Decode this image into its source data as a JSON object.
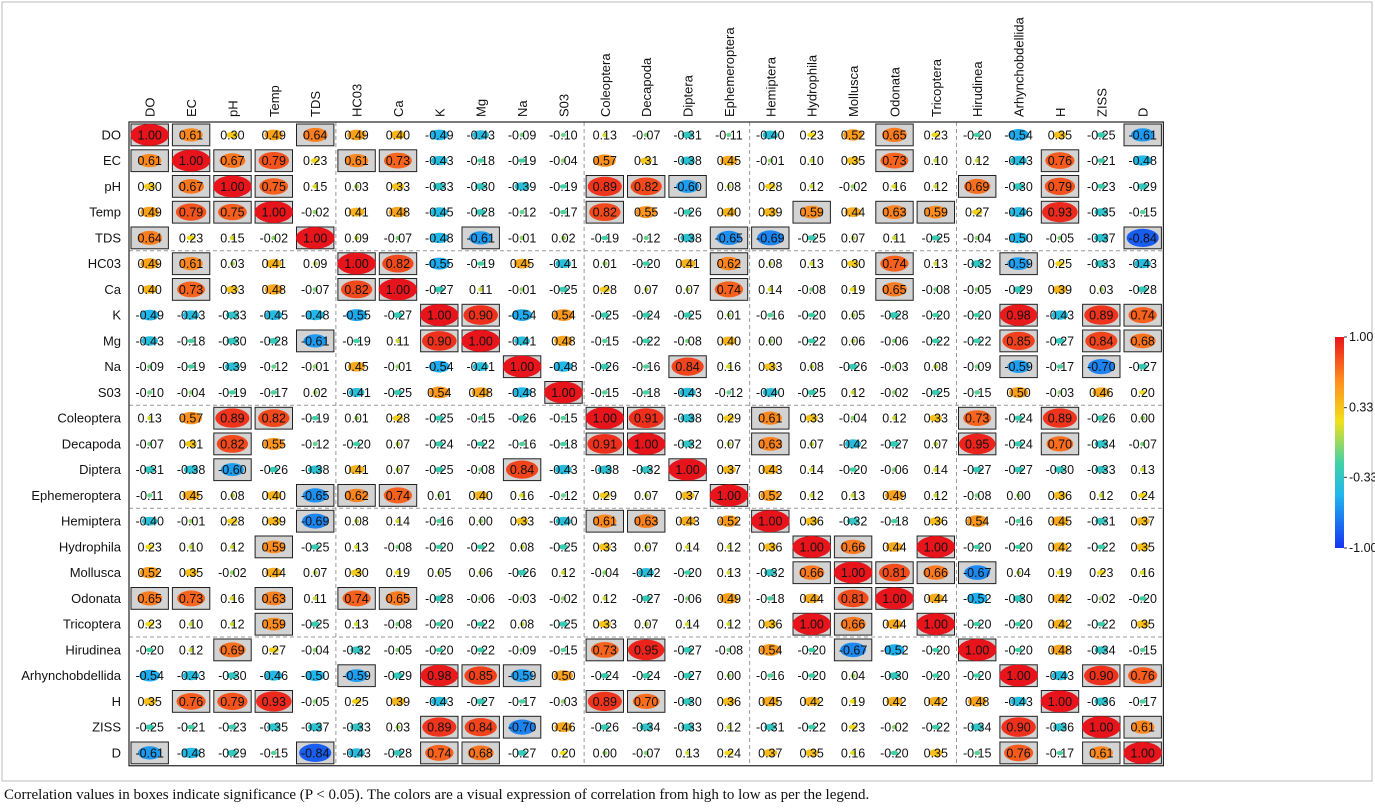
{
  "chart_data": {
    "type": "heatmap",
    "title": "",
    "xlabel": "",
    "ylabel": "",
    "variables": [
      "DO",
      "EC",
      "pH",
      "Temp",
      "TDS",
      "HC03",
      "Ca",
      "K",
      "Mg",
      "Na",
      "S03",
      "Coleoptera",
      "Decapoda",
      "Diptera",
      "Ephemeroptera",
      "Hemiptera",
      "Hydrophila",
      "Mollusca",
      "Odonata",
      "Tricoptera",
      "Hirudinea",
      "Arhynchobdellida",
      "H",
      "ZISS",
      "D"
    ],
    "matrix": [
      [
        "1.00",
        "0.61",
        "0.30",
        "0.49",
        "0.64",
        "0.49",
        "0.40",
        "-0.49",
        "-0.43",
        "-0.09",
        "-0.10",
        "0.13",
        "-0.07",
        "-0.31",
        "-0.11",
        "-0.40",
        "0.23",
        "0.52",
        "0.65",
        "0.23",
        "-0.20",
        "-0.54",
        "0.35",
        "-0.25",
        "-0.61"
      ],
      [
        "0.61",
        "1.00",
        "0.67",
        "0.79",
        "0.23",
        "0.61",
        "0.73",
        "-0.43",
        "-0.18",
        "-0.19",
        "-0.04",
        "0.57",
        "0.31",
        "-0.38",
        "0.45",
        "-0.01",
        "0.10",
        "0.35",
        "0.73",
        "0.10",
        "0.12",
        "-0.43",
        "0.76",
        "-0.21",
        "-0.48"
      ],
      [
        "0.30",
        "0.67",
        "1.00",
        "0.75",
        "0.15",
        "0.03",
        "0.33",
        "-0.33",
        "-0.30",
        "-0.39",
        "-0.19",
        "0.89",
        "0.82",
        "-0.60",
        "0.08",
        "0.28",
        "0.12",
        "-0.02",
        "0.16",
        "0.12",
        "0.69",
        "-0.30",
        "0.79",
        "-0.23",
        "-0.29"
      ],
      [
        "0.49",
        "0.79",
        "0.75",
        "1.00",
        "-0.02",
        "0.41",
        "0.48",
        "-0.45",
        "-0.28",
        "-0.12",
        "-0.17",
        "0.82",
        "0.55",
        "-0.26",
        "0.40",
        "0.39",
        "0.59",
        "0.44",
        "0.63",
        "0.59",
        "0.27",
        "-0.46",
        "0.93",
        "-0.35",
        "-0.15"
      ],
      [
        "0.64",
        "0.23",
        "0.15",
        "-0.02",
        "1.00",
        "0.09",
        "-0.07",
        "-0.48",
        "-0.61",
        "-0.01",
        "0.02",
        "-0.19",
        "-0.12",
        "-0.38",
        "-0.65",
        "-0.69",
        "-0.25",
        "0.07",
        "0.11",
        "-0.25",
        "-0.04",
        "-0.50",
        "-0.05",
        "-0.37",
        "-0.84"
      ],
      [
        "0.49",
        "0.61",
        "0.03",
        "0.41",
        "0.09",
        "1.00",
        "0.82",
        "-0.55",
        "-0.19",
        "0.45",
        "-0.41",
        "0.01",
        "-0.20",
        "0.41",
        "0.62",
        "0.08",
        "0.13",
        "0.30",
        "0.74",
        "0.13",
        "-0.32",
        "-0.59",
        "0.25",
        "-0.33",
        "-0.43"
      ],
      [
        "0.40",
        "0.73",
        "0.33",
        "0.48",
        "-0.07",
        "0.82",
        "1.00",
        "-0.27",
        "0.11",
        "-0.01",
        "-0.25",
        "0.28",
        "0.07",
        "0.07",
        "0.74",
        "0.14",
        "-0.08",
        "0.19",
        "0.65",
        "-0.08",
        "-0.05",
        "-0.29",
        "0.39",
        "0.03",
        "-0.28"
      ],
      [
        "-0.49",
        "-0.43",
        "-0.33",
        "-0.45",
        "-0.48",
        "-0.55",
        "-0.27",
        "1.00",
        "0.90",
        "-0.54",
        "0.54",
        "-0.25",
        "-0.24",
        "-0.25",
        "0.01",
        "-0.16",
        "-0.20",
        "0.05",
        "-0.28",
        "-0.20",
        "-0.20",
        "0.98",
        "-0.43",
        "0.89",
        "0.74"
      ],
      [
        "-0.43",
        "-0.18",
        "-0.30",
        "-0.28",
        "-0.61",
        "-0.19",
        "0.11",
        "0.90",
        "1.00",
        "-0.41",
        "0.48",
        "-0.15",
        "-0.22",
        "-0.08",
        "0.40",
        "0.00",
        "-0.22",
        "0.06",
        "-0.06",
        "-0.22",
        "-0.22",
        "0.85",
        "-0.27",
        "0.84",
        "0.68"
      ],
      [
        "-0.09",
        "-0.19",
        "-0.39",
        "-0.12",
        "-0.01",
        "0.45",
        "-0.01",
        "-0.54",
        "-0.41",
        "1.00",
        "-0.48",
        "-0.26",
        "-0.16",
        "0.84",
        "0.16",
        "0.33",
        "0.08",
        "-0.26",
        "-0.03",
        "0.08",
        "-0.09",
        "-0.59",
        "-0.17",
        "-0.70",
        "-0.27"
      ],
      [
        "-0.10",
        "-0.04",
        "-0.19",
        "-0.17",
        "0.02",
        "-0.41",
        "-0.25",
        "0.54",
        "0.48",
        "-0.48",
        "1.00",
        "-0.15",
        "-0.18",
        "-0.43",
        "-0.12",
        "-0.40",
        "-0.25",
        "0.12",
        "-0.02",
        "-0.25",
        "-0.15",
        "0.50",
        "-0.03",
        "0.46",
        "0.20"
      ],
      [
        "0.13",
        "0.57",
        "0.89",
        "0.82",
        "-0.19",
        "0.01",
        "0.28",
        "-0.25",
        "-0.15",
        "-0.26",
        "-0.15",
        "1.00",
        "0.91",
        "-0.38",
        "0.29",
        "0.61",
        "0.33",
        "-0.04",
        "0.12",
        "0.33",
        "0.73",
        "-0.24",
        "0.89",
        "-0.26",
        "0.00"
      ],
      [
        "-0.07",
        "0.31",
        "0.82",
        "0.55",
        "-0.12",
        "-0.20",
        "0.07",
        "-0.24",
        "-0.22",
        "-0.16",
        "-0.18",
        "0.91",
        "1.00",
        "-0.32",
        "0.07",
        "0.63",
        "0.07",
        "-0.42",
        "-0.27",
        "0.07",
        "0.95",
        "-0.24",
        "0.70",
        "-0.34",
        "-0.07"
      ],
      [
        "-0.31",
        "-0.38",
        "-0.60",
        "-0.26",
        "-0.38",
        "0.41",
        "0.07",
        "-0.25",
        "-0.08",
        "0.84",
        "-0.43",
        "-0.38",
        "-0.32",
        "1.00",
        "0.37",
        "0.43",
        "0.14",
        "-0.20",
        "-0.06",
        "0.14",
        "-0.27",
        "-0.27",
        "-0.30",
        "-0.33",
        "0.13"
      ],
      [
        "-0.11",
        "0.45",
        "0.08",
        "0.40",
        "-0.65",
        "0.62",
        "0.74",
        "0.01",
        "0.40",
        "0.16",
        "-0.12",
        "0.29",
        "0.07",
        "0.37",
        "1.00",
        "0.52",
        "0.12",
        "0.13",
        "0.49",
        "0.12",
        "-0.08",
        "0.00",
        "0.36",
        "0.12",
        "0.24"
      ],
      [
        "-0.40",
        "-0.01",
        "0.28",
        "0.39",
        "-0.69",
        "0.08",
        "0.14",
        "-0.16",
        "0.00",
        "0.33",
        "-0.40",
        "0.61",
        "0.63",
        "0.43",
        "0.52",
        "1.00",
        "0.36",
        "-0.32",
        "-0.18",
        "0.36",
        "0.54",
        "-0.16",
        "0.45",
        "-0.31",
        "0.37"
      ],
      [
        "0.23",
        "0.10",
        "0.12",
        "0.59",
        "-0.25",
        "0.13",
        "-0.08",
        "-0.20",
        "-0.22",
        "0.08",
        "-0.25",
        "0.33",
        "0.07",
        "0.14",
        "0.12",
        "0.36",
        "1.00",
        "0.66",
        "0.44",
        "1.00",
        "-0.20",
        "-0.20",
        "0.42",
        "-0.22",
        "0.35"
      ],
      [
        "0.52",
        "0.35",
        "-0.02",
        "0.44",
        "0.07",
        "0.30",
        "0.19",
        "0.05",
        "0.06",
        "-0.26",
        "0.12",
        "-0.04",
        "-0.42",
        "-0.20",
        "0.13",
        "-0.32",
        "0.66",
        "1.00",
        "0.81",
        "0.66",
        "-0.67",
        "0.04",
        "0.19",
        "0.23",
        "0.16"
      ],
      [
        "0.65",
        "0.73",
        "0.16",
        "0.63",
        "0.11",
        "0.74",
        "0.65",
        "-0.28",
        "-0.06",
        "-0.03",
        "-0.02",
        "0.12",
        "-0.27",
        "-0.06",
        "0.49",
        "-0.18",
        "0.44",
        "0.81",
        "1.00",
        "0.44",
        "-0.52",
        "-0.30",
        "0.42",
        "-0.02",
        "-0.20"
      ],
      [
        "0.23",
        "0.10",
        "0.12",
        "0.59",
        "-0.25",
        "0.13",
        "-0.08",
        "-0.20",
        "-0.22",
        "0.08",
        "-0.25",
        "0.33",
        "0.07",
        "0.14",
        "0.12",
        "0.36",
        "1.00",
        "0.66",
        "0.44",
        "1.00",
        "-0.20",
        "-0.20",
        "0.42",
        "-0.22",
        "0.35"
      ],
      [
        "-0.20",
        "0.12",
        "0.69",
        "0.27",
        "-0.04",
        "-0.32",
        "-0.05",
        "-0.20",
        "-0.22",
        "-0.09",
        "-0.15",
        "0.73",
        "0.95",
        "-0.27",
        "-0.08",
        "0.54",
        "-0.20",
        "-0.67",
        "-0.52",
        "-0.20",
        "1.00",
        "-0.20",
        "0.48",
        "-0.34",
        "-0.15"
      ],
      [
        "-0.54",
        "-0.43",
        "-0.30",
        "-0.46",
        "-0.50",
        "-0.59",
        "-0.29",
        "0.98",
        "0.85",
        "-0.59",
        "0.50",
        "-0.24",
        "-0.24",
        "-0.27",
        "0.00",
        "-0.16",
        "-0.20",
        "0.04",
        "-0.30",
        "-0.20",
        "-0.20",
        "1.00",
        "-0.43",
        "0.90",
        "0.76"
      ],
      [
        "0.35",
        "0.76",
        "0.79",
        "0.93",
        "-0.05",
        "0.25",
        "0.39",
        "-0.43",
        "-0.27",
        "-0.17",
        "-0.03",
        "0.89",
        "0.70",
        "-0.30",
        "0.36",
        "0.45",
        "0.42",
        "0.19",
        "0.42",
        "0.42",
        "0.48",
        "-0.43",
        "1.00",
        "-0.36",
        "-0.17"
      ],
      [
        "-0.25",
        "-0.21",
        "-0.23",
        "-0.35",
        "-0.37",
        "-0.33",
        "0.03",
        "0.89",
        "0.84",
        "-0.70",
        "0.46",
        "-0.26",
        "-0.34",
        "-0.33",
        "0.12",
        "-0.31",
        "-0.22",
        "0.23",
        "-0.02",
        "-0.22",
        "-0.34",
        "0.90",
        "-0.36",
        "1.00",
        "0.61"
      ],
      [
        "-0.61",
        "-0.48",
        "-0.29",
        "-0.15",
        "-0.84",
        "-0.43",
        "-0.28",
        "0.74",
        "0.68",
        "-0.27",
        "0.20",
        "0.00",
        "-0.07",
        "0.13",
        "0.24",
        "0.37",
        "0.35",
        "0.16",
        "-0.20",
        "0.35",
        "-0.15",
        "0.76",
        "-0.17",
        "0.61",
        "1.00"
      ]
    ],
    "significant": [
      [
        "DO",
        "DO"
      ],
      [
        "DO",
        "EC"
      ],
      [
        "DO",
        "TDS"
      ],
      [
        "DO",
        "Odonata"
      ],
      [
        "DO",
        "D"
      ],
      [
        "EC",
        "DO"
      ],
      [
        "EC",
        "EC"
      ],
      [
        "EC",
        "pH"
      ],
      [
        "EC",
        "Temp"
      ],
      [
        "EC",
        "HC03"
      ],
      [
        "EC",
        "Ca"
      ],
      [
        "EC",
        "Odonata"
      ],
      [
        "EC",
        "H"
      ],
      [
        "pH",
        "EC"
      ],
      [
        "pH",
        "pH"
      ],
      [
        "pH",
        "Temp"
      ],
      [
        "pH",
        "Coleoptera"
      ],
      [
        "pH",
        "Decapoda"
      ],
      [
        "pH",
        "Diptera"
      ],
      [
        "pH",
        "Hirudinea"
      ],
      [
        "pH",
        "H"
      ],
      [
        "Temp",
        "EC"
      ],
      [
        "Temp",
        "pH"
      ],
      [
        "Temp",
        "Temp"
      ],
      [
        "Temp",
        "Coleoptera"
      ],
      [
        "Temp",
        "Hydrophila"
      ],
      [
        "Temp",
        "Odonata"
      ],
      [
        "Temp",
        "Tricoptera"
      ],
      [
        "Temp",
        "H"
      ],
      [
        "TDS",
        "DO"
      ],
      [
        "TDS",
        "TDS"
      ],
      [
        "TDS",
        "Mg"
      ],
      [
        "TDS",
        "Ephemeroptera"
      ],
      [
        "TDS",
        "Hemiptera"
      ],
      [
        "TDS",
        "D"
      ],
      [
        "HC03",
        "EC"
      ],
      [
        "HC03",
        "HC03"
      ],
      [
        "HC03",
        "Ca"
      ],
      [
        "HC03",
        "Ephemeroptera"
      ],
      [
        "HC03",
        "Odonata"
      ],
      [
        "HC03",
        "Arhynchobdellida"
      ],
      [
        "Ca",
        "EC"
      ],
      [
        "Ca",
        "HC03"
      ],
      [
        "Ca",
        "Ca"
      ],
      [
        "Ca",
        "Ephemeroptera"
      ],
      [
        "Ca",
        "Odonata"
      ],
      [
        "K",
        "K"
      ],
      [
        "K",
        "Mg"
      ],
      [
        "K",
        "Arhynchobdellida"
      ],
      [
        "K",
        "ZISS"
      ],
      [
        "K",
        "D"
      ],
      [
        "Mg",
        "TDS"
      ],
      [
        "Mg",
        "K"
      ],
      [
        "Mg",
        "Mg"
      ],
      [
        "Mg",
        "Arhynchobdellida"
      ],
      [
        "Mg",
        "ZISS"
      ],
      [
        "Mg",
        "D"
      ],
      [
        "Na",
        "Na"
      ],
      [
        "Na",
        "Diptera"
      ],
      [
        "Na",
        "Arhynchobdellida"
      ],
      [
        "Na",
        "ZISS"
      ],
      [
        "S03",
        "S03"
      ],
      [
        "Coleoptera",
        "pH"
      ],
      [
        "Coleoptera",
        "Temp"
      ],
      [
        "Coleoptera",
        "Coleoptera"
      ],
      [
        "Coleoptera",
        "Decapoda"
      ],
      [
        "Coleoptera",
        "Hemiptera"
      ],
      [
        "Coleoptera",
        "Hirudinea"
      ],
      [
        "Coleoptera",
        "H"
      ],
      [
        "Decapoda",
        "pH"
      ],
      [
        "Decapoda",
        "Coleoptera"
      ],
      [
        "Decapoda",
        "Decapoda"
      ],
      [
        "Decapoda",
        "Hemiptera"
      ],
      [
        "Decapoda",
        "Hirudinea"
      ],
      [
        "Decapoda",
        "H"
      ],
      [
        "Diptera",
        "pH"
      ],
      [
        "Diptera",
        "Na"
      ],
      [
        "Diptera",
        "Diptera"
      ],
      [
        "Ephemeroptera",
        "TDS"
      ],
      [
        "Ephemeroptera",
        "HC03"
      ],
      [
        "Ephemeroptera",
        "Ca"
      ],
      [
        "Ephemeroptera",
        "Ephemeroptera"
      ],
      [
        "Hemiptera",
        "TDS"
      ],
      [
        "Hemiptera",
        "Coleoptera"
      ],
      [
        "Hemiptera",
        "Decapoda"
      ],
      [
        "Hemiptera",
        "Hemiptera"
      ],
      [
        "Hydrophila",
        "Temp"
      ],
      [
        "Hydrophila",
        "Hydrophila"
      ],
      [
        "Hydrophila",
        "Mollusca"
      ],
      [
        "Hydrophila",
        "Tricoptera"
      ],
      [
        "Mollusca",
        "Hydrophila"
      ],
      [
        "Mollusca",
        "Mollusca"
      ],
      [
        "Mollusca",
        "Odonata"
      ],
      [
        "Mollusca",
        "Tricoptera"
      ],
      [
        "Mollusca",
        "Hirudinea"
      ],
      [
        "Odonata",
        "DO"
      ],
      [
        "Odonata",
        "EC"
      ],
      [
        "Odonata",
        "Temp"
      ],
      [
        "Odonata",
        "HC03"
      ],
      [
        "Odonata",
        "Ca"
      ],
      [
        "Odonata",
        "Mollusca"
      ],
      [
        "Odonata",
        "Odonata"
      ],
      [
        "Tricoptera",
        "Temp"
      ],
      [
        "Tricoptera",
        "Hydrophila"
      ],
      [
        "Tricoptera",
        "Mollusca"
      ],
      [
        "Tricoptera",
        "Tricoptera"
      ],
      [
        "Hirudinea",
        "pH"
      ],
      [
        "Hirudinea",
        "Coleoptera"
      ],
      [
        "Hirudinea",
        "Decapoda"
      ],
      [
        "Hirudinea",
        "Mollusca"
      ],
      [
        "Hirudinea",
        "Hirudinea"
      ],
      [
        "Arhynchobdellida",
        "HC03"
      ],
      [
        "Arhynchobdellida",
        "K"
      ],
      [
        "Arhynchobdellida",
        "Mg"
      ],
      [
        "Arhynchobdellida",
        "Na"
      ],
      [
        "Arhynchobdellida",
        "Arhynchobdellida"
      ],
      [
        "Arhynchobdellida",
        "ZISS"
      ],
      [
        "Arhynchobdellida",
        "D"
      ],
      [
        "H",
        "EC"
      ],
      [
        "H",
        "pH"
      ],
      [
        "H",
        "Temp"
      ],
      [
        "H",
        "Coleoptera"
      ],
      [
        "H",
        "Decapoda"
      ],
      [
        "H",
        "H"
      ],
      [
        "ZISS",
        "K"
      ],
      [
        "ZISS",
        "Mg"
      ],
      [
        "ZISS",
        "Na"
      ],
      [
        "ZISS",
        "Arhynchobdellida"
      ],
      [
        "ZISS",
        "ZISS"
      ],
      [
        "ZISS",
        "D"
      ],
      [
        "D",
        "DO"
      ],
      [
        "D",
        "TDS"
      ],
      [
        "D",
        "K"
      ],
      [
        "D",
        "Mg"
      ],
      [
        "D",
        "Arhynchobdellida"
      ],
      [
        "D",
        "ZISS"
      ],
      [
        "D",
        "D"
      ]
    ],
    "group_separators_after": [
      "TDS",
      "S03",
      "Ephemeroptera",
      "Tricoptera"
    ],
    "colorbar": {
      "range": [
        -1.0,
        1.0
      ],
      "tick_labels": [
        "1.00",
        "0.33",
        "-0.33",
        "-1.00"
      ],
      "tick_values": [
        1.0,
        0.33,
        -0.33,
        -1.0
      ],
      "colors": {
        "high": "#e8141b",
        "upper": "#ff8a1e",
        "mid_upper": "#f2e01c",
        "mid": "#40d1a8",
        "mid_lower": "#1fb6ef",
        "low": "#1733f2"
      }
    }
  },
  "caption": "Correlation values in boxes indicate significance (P < 0.05). The colors are a visual expression of correlation from high to low as per the legend."
}
